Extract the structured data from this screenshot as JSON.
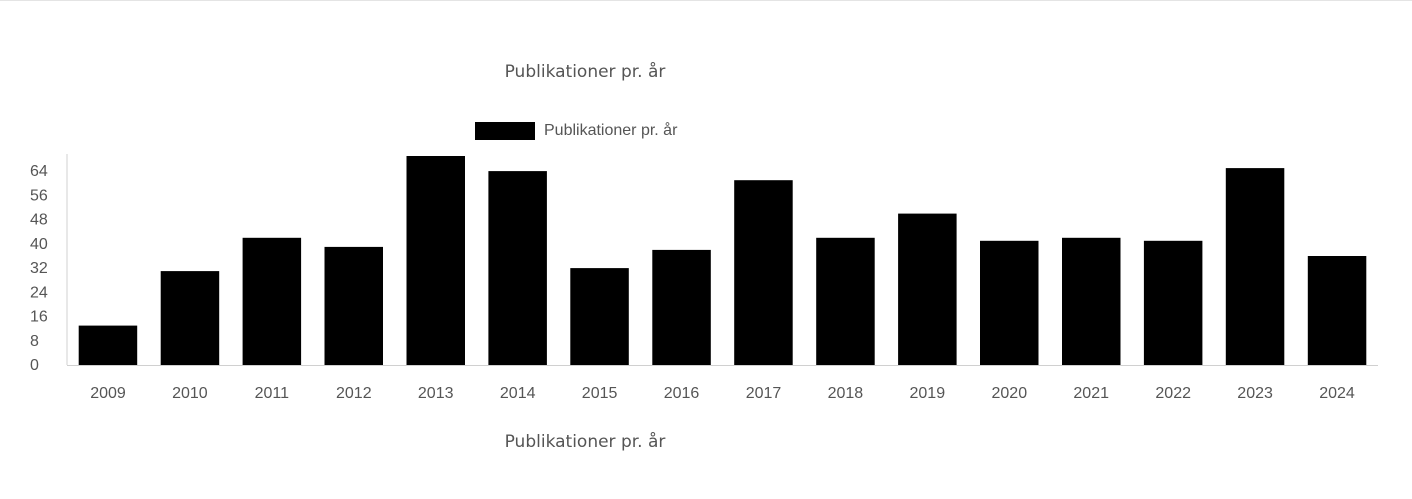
{
  "header": {
    "title": "Publikationer pr. år"
  },
  "footer": {
    "caption": "Publikationer pr. år"
  },
  "chart_data": {
    "type": "bar",
    "title": "Publikationer pr. år",
    "xlabel": "Publikationer pr. år",
    "ylabel": "",
    "categories": [
      "2009",
      "2010",
      "2011",
      "2012",
      "2013",
      "2014",
      "2015",
      "2016",
      "2017",
      "2018",
      "2019",
      "2020",
      "2021",
      "2022",
      "2023",
      "2024"
    ],
    "series": [
      {
        "name": "Publikationer pr. år",
        "color": "#000000",
        "values": [
          13,
          31,
          42,
          39,
          69,
          64,
          32,
          38,
          61,
          42,
          50,
          41,
          42,
          41,
          65,
          36
        ]
      }
    ],
    "yticks": [
      0,
      8,
      16,
      24,
      32,
      40,
      48,
      56,
      64
    ],
    "ylim": [
      0,
      69
    ],
    "legend": {
      "position": "top-center",
      "label": "Publikationer pr. år",
      "color": "#000000"
    },
    "grid": false
  }
}
